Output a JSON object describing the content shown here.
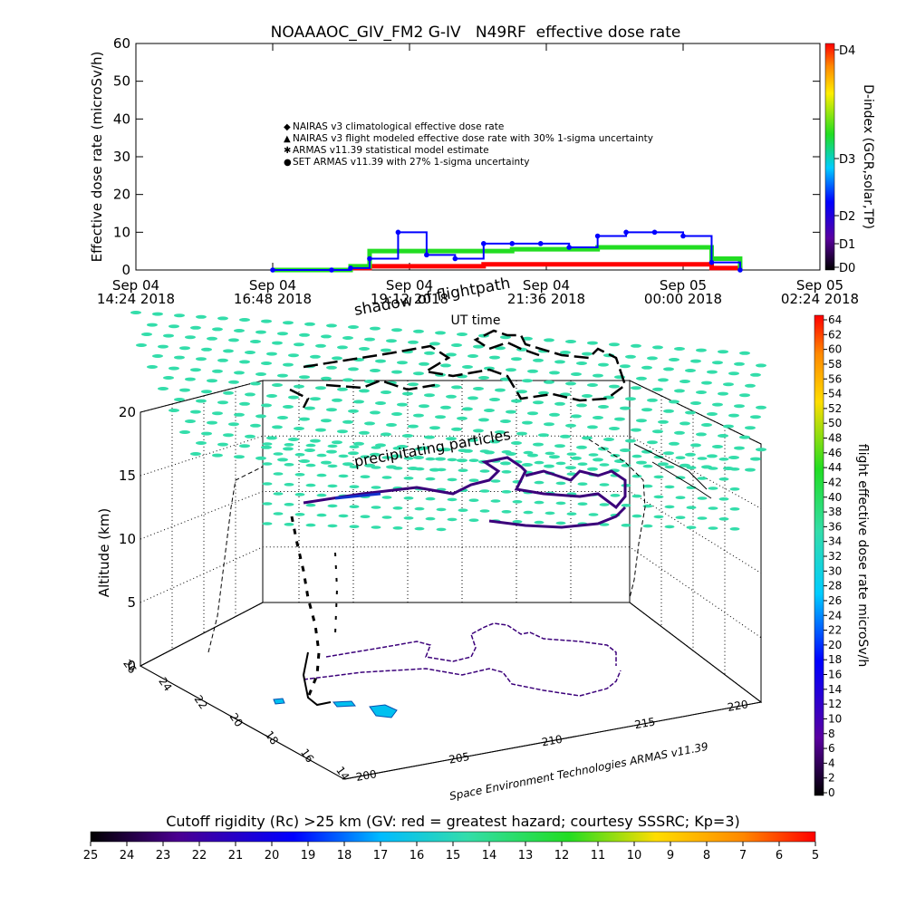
{
  "top_chart": {
    "title": "NOAAAOC_GIV_FM2 G-IV   N49RF  effective dose rate",
    "ylabel": "Effective dose rate (microSv/h)",
    "y_ticks": [
      "0",
      "10",
      "20",
      "30",
      "40",
      "50",
      "60"
    ],
    "x_ticks": [
      {
        "l1": "Sep 04",
        "l2": "14:24 2018"
      },
      {
        "l1": "Sep 04",
        "l2": "16:48 2018"
      },
      {
        "l1": "Sep 04",
        "l2": "19:12 2018"
      },
      {
        "l1": "Sep 04",
        "l2": "21:36 2018"
      },
      {
        "l1": "Sep 05",
        "l2": "00:00 2018"
      },
      {
        "l1": "Sep 05",
        "l2": "02:24 2018"
      }
    ],
    "xlabel": "UT time",
    "legend": [
      {
        "label": "NAIRAS v3 climatological effective dose rate",
        "marker": "◆",
        "color": "#ff0000"
      },
      {
        "label": "NAIRAS v3 flight modeled effective dose rate with 30% 1-sigma uncertainty",
        "marker": "▲",
        "color": "#000000"
      },
      {
        "label": "ARMAS v11.39 statistical model estimate",
        "marker": "✱",
        "color": "#00dd00"
      },
      {
        "label": "SET ARMAS v11.39 with 27% 1-sigma uncertainty",
        "marker": "●",
        "color": "#0000ff"
      }
    ],
    "right_axis_label": "D-index (GCR,solar,TP)",
    "right_ticks": [
      "D4",
      "D3",
      "D2",
      "D1",
      "D0"
    ]
  },
  "chart_data": [
    {
      "type": "line",
      "title": "NOAAAOC_GIV_FM2 G-IV   N49RF  effective dose rate",
      "xlabel": "UT time",
      "ylabel": "Effective dose rate (microSv/h)",
      "ylim": [
        0,
        60
      ],
      "x": [
        "2018-09-04 16:48",
        "2018-09-04 17:50",
        "2018-09-04 18:10",
        "2018-09-04 18:30",
        "2018-09-04 19:00",
        "2018-09-04 19:30",
        "2018-09-04 20:00",
        "2018-09-04 20:30",
        "2018-09-04 21:00",
        "2018-09-04 21:30",
        "2018-09-04 22:00",
        "2018-09-04 22:30",
        "2018-09-04 23:00",
        "2018-09-04 23:30",
        "2018-09-05 00:00",
        "2018-09-05 00:30",
        "2018-09-05 01:00"
      ],
      "series": [
        {
          "name": "NAIRAS v3 climatological effective dose rate",
          "values": [
            0,
            0,
            0.5,
            1,
            1,
            1,
            1,
            1.5,
            1.5,
            1.5,
            1.5,
            1.5,
            1.5,
            1.5,
            1.5,
            0.5,
            0
          ]
        },
        {
          "name": "ARMAS v11.39 statistical model estimate",
          "values": [
            0,
            0,
            1,
            5,
            5,
            5,
            5,
            5,
            5.5,
            5.5,
            5.5,
            6,
            6,
            6,
            6,
            3,
            0
          ]
        },
        {
          "name": "SET ARMAS v11.39 with 27% 1-sigma uncertainty",
          "values": [
            0,
            0,
            0.5,
            3,
            10,
            4,
            3,
            7,
            7,
            7,
            6,
            9,
            10,
            10,
            9,
            2,
            0
          ]
        }
      ],
      "right_axis": {
        "label": "D-index (GCR,solar,TP)",
        "ticks": [
          "D4",
          "D3",
          "D2",
          "D1",
          "D0"
        ]
      }
    },
    {
      "type": "scatter",
      "subtype": "3d-flight-track",
      "zlabel": "Altitude (km)",
      "z_ticks": [
        0,
        5,
        10,
        15,
        20
      ],
      "y_ticks": [
        14,
        16,
        18,
        20,
        22,
        24,
        26
      ],
      "x_ticks": [
        200,
        205,
        210,
        215,
        220
      ],
      "colorbar": {
        "label": "flight effective dose rate microSv/h",
        "range": [
          0,
          64
        ],
        "ticks": [
          0,
          2,
          4,
          6,
          8,
          10,
          12,
          14,
          16,
          18,
          20,
          22,
          24,
          26,
          28,
          30,
          32,
          34,
          36,
          38,
          40,
          42,
          44,
          46,
          48,
          50,
          52,
          54,
          56,
          58,
          60,
          62,
          64
        ]
      },
      "annotations": [
        "shadow of flightpath",
        "precipitating particles"
      ],
      "credit": "Space Environment Technologies ARMAS v11.39"
    }
  ],
  "rigidity_bar": {
    "label": "Cutoff rigidity (Rc) >25 km (GV: red = greatest hazard; courtesy SSSRC; Kp=3)",
    "ticks": [
      "25",
      "24",
      "23",
      "22",
      "21",
      "20",
      "19",
      "18",
      "17",
      "16",
      "15",
      "14",
      "13",
      "12",
      "11",
      "10",
      "9",
      "8",
      "7",
      "6",
      "5"
    ]
  },
  "colors": {
    "armas_green": "#22dd22",
    "set_blue": "#0000ff",
    "nairas_red": "#ff0000",
    "cutoff_cyan": "#33ddaa"
  }
}
